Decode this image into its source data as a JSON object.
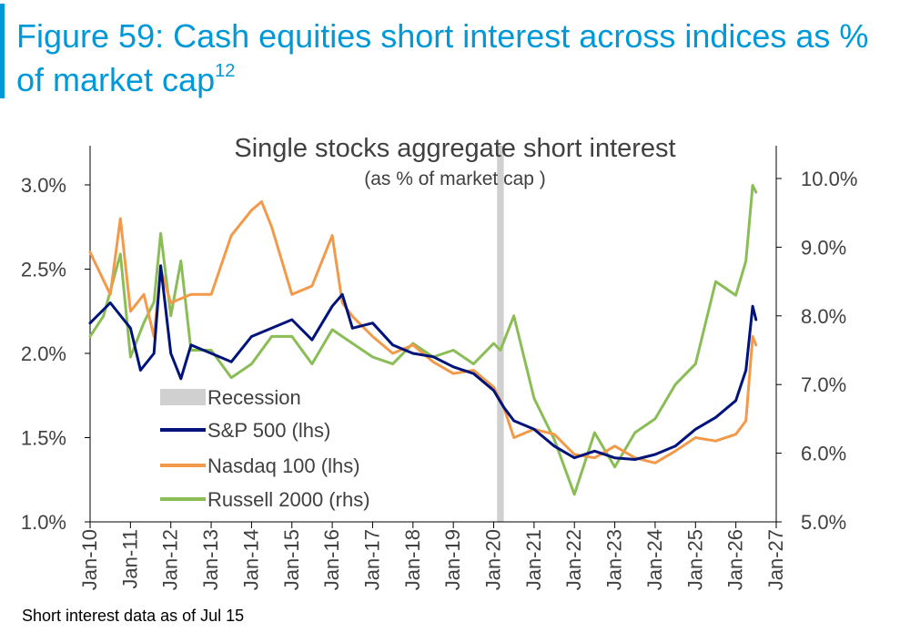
{
  "header": {
    "title": "Figure 59: Cash equities short interest across indices as % of market cap",
    "title_superscript": "12"
  },
  "footnote": "Short interest data as of Jul 15",
  "chart_data": {
    "type": "line",
    "title": "Single stocks aggregate short interest",
    "subtitle": "(as % of market cap )",
    "x_axis": {
      "range": [
        "2010-01",
        "2027-01"
      ],
      "tick_labels": [
        "Jan-10",
        "Jan-11",
        "Jan-12",
        "Jan-13",
        "Jan-14",
        "Jan-15",
        "Jan-16",
        "Jan-17",
        "Jan-18",
        "Jan-19",
        "Jan-20",
        "Jan-21",
        "Jan-22",
        "Jan-23",
        "Jan-24",
        "Jan-25",
        "Jan-26",
        "Jan-27"
      ]
    },
    "y_left": {
      "range": [
        1.0,
        3.0
      ],
      "tick_labels": [
        "1.0%",
        "1.5%",
        "2.0%",
        "2.5%",
        "3.0%"
      ]
    },
    "y_right": {
      "range": [
        5.0,
        10.0
      ],
      "tick_labels": [
        "5.0%",
        "6.0%",
        "7.0%",
        "8.0%",
        "9.0%",
        "10.0%"
      ]
    },
    "grid": false,
    "legend": {
      "placement": "bottom-left",
      "entries": [
        "Recession",
        "S&P 500 (lhs)",
        "Nasdaq 100 (lhs)",
        "Russell 2000 (rhs)"
      ]
    },
    "recession": {
      "start": "2020-02",
      "end": "2020-04",
      "color": "#d0d0d0"
    },
    "series": [
      {
        "name": "S&P 500 (lhs)",
        "axis": "left",
        "color": "#00137a",
        "x": [
          "2010-01",
          "2010-07",
          "2011-01",
          "2011-04",
          "2011-08",
          "2011-10",
          "2012-01",
          "2012-04",
          "2012-07",
          "2013-01",
          "2013-07",
          "2014-01",
          "2014-07",
          "2015-01",
          "2015-07",
          "2016-01",
          "2016-04",
          "2016-07",
          "2017-01",
          "2017-07",
          "2018-01",
          "2018-07",
          "2019-01",
          "2019-07",
          "2020-01",
          "2020-04",
          "2020-07",
          "2021-01",
          "2021-07",
          "2022-01",
          "2022-07",
          "2023-01",
          "2023-07",
          "2024-01",
          "2024-07",
          "2025-01",
          "2025-07",
          "2026-01",
          "2026-04",
          "2026-06",
          "2026-07"
        ],
        "y": [
          2.18,
          2.3,
          2.15,
          1.9,
          2.0,
          2.52,
          2.0,
          1.85,
          2.05,
          2.0,
          1.95,
          2.1,
          2.15,
          2.2,
          2.08,
          2.28,
          2.35,
          2.15,
          2.18,
          2.05,
          2.0,
          1.98,
          1.92,
          1.88,
          1.78,
          1.68,
          1.6,
          1.55,
          1.45,
          1.38,
          1.42,
          1.38,
          1.37,
          1.4,
          1.45,
          1.55,
          1.62,
          1.72,
          1.9,
          2.28,
          2.2
        ]
      },
      {
        "name": "Nasdaq 100 (lhs)",
        "axis": "left",
        "color": "#f39a4a",
        "x": [
          "2010-01",
          "2010-07",
          "2010-10",
          "2011-01",
          "2011-05",
          "2011-08",
          "2011-10",
          "2012-01",
          "2012-07",
          "2013-01",
          "2013-07",
          "2014-01",
          "2014-04",
          "2014-07",
          "2015-01",
          "2015-07",
          "2016-01",
          "2016-04",
          "2016-07",
          "2017-01",
          "2017-07",
          "2018-01",
          "2018-07",
          "2019-01",
          "2019-07",
          "2020-01",
          "2020-04",
          "2020-07",
          "2021-01",
          "2021-07",
          "2022-01",
          "2022-07",
          "2023-01",
          "2023-07",
          "2024-01",
          "2024-07",
          "2025-01",
          "2025-07",
          "2026-01",
          "2026-04",
          "2026-06",
          "2026-07"
        ],
        "y": [
          2.6,
          2.35,
          2.8,
          2.25,
          2.35,
          2.1,
          2.5,
          2.3,
          2.35,
          2.35,
          2.7,
          2.85,
          2.9,
          2.75,
          2.35,
          2.4,
          2.7,
          2.3,
          2.22,
          2.1,
          2.0,
          2.05,
          1.95,
          1.88,
          1.9,
          1.8,
          1.68,
          1.5,
          1.55,
          1.52,
          1.4,
          1.38,
          1.45,
          1.38,
          1.35,
          1.42,
          1.5,
          1.48,
          1.52,
          1.6,
          2.1,
          2.05
        ]
      },
      {
        "name": "Russell 2000 (rhs)",
        "axis": "right",
        "color": "#8bbd56",
        "x": [
          "2010-01",
          "2010-05",
          "2010-10",
          "2011-01",
          "2011-05",
          "2011-08",
          "2011-10",
          "2012-01",
          "2012-04",
          "2012-07",
          "2013-01",
          "2013-07",
          "2014-01",
          "2014-07",
          "2015-01",
          "2015-07",
          "2016-01",
          "2016-07",
          "2017-01",
          "2017-07",
          "2018-01",
          "2018-07",
          "2019-01",
          "2019-07",
          "2020-01",
          "2020-03",
          "2020-07",
          "2021-01",
          "2021-07",
          "2022-01",
          "2022-07",
          "2023-01",
          "2023-07",
          "2024-01",
          "2024-07",
          "2025-01",
          "2025-07",
          "2026-01",
          "2026-04",
          "2026-06",
          "2026-07"
        ],
        "y": [
          7.7,
          8.0,
          8.9,
          7.4,
          7.9,
          8.2,
          9.2,
          8.0,
          8.8,
          7.5,
          7.5,
          7.1,
          7.3,
          7.7,
          7.7,
          7.3,
          7.8,
          7.6,
          7.4,
          7.3,
          7.6,
          7.4,
          7.5,
          7.3,
          7.6,
          7.5,
          8.0,
          6.8,
          6.2,
          5.4,
          6.3,
          5.8,
          6.3,
          6.5,
          7.0,
          7.3,
          8.5,
          8.3,
          8.8,
          9.9,
          9.8
        ]
      }
    ]
  }
}
